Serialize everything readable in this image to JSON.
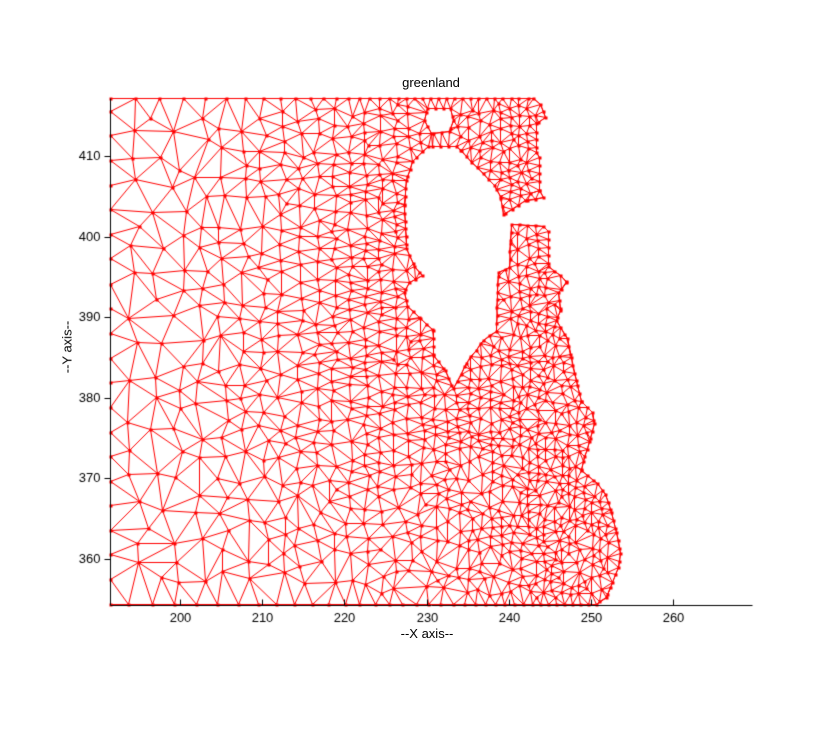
{
  "chart_data": {
    "type": "mesh",
    "title": "greenland",
    "xlabel": "--X axis--",
    "ylabel": "--Y axis--",
    "xlim": [
      191.48,
      269.59
    ],
    "ylim": [
      354.23,
      417.58
    ],
    "xticks": [
      200,
      210,
      220,
      230,
      240,
      250,
      260
    ],
    "yticks": [
      360,
      370,
      380,
      390,
      400,
      410
    ],
    "grid": false,
    "box": false,
    "mesh_color": "#ff0000",
    "axis_color": "#000000",
    "background": "#ffffff",
    "legend": null,
    "description": "Unstructured triangular finite-element mesh of a Greenland coastal fjord region; mesh is graded: coarse elements at the west (left) edge, fine elements along the jagged east coastline and around an unmeshed island hole in the middle.",
    "element_size_data_units": {
      "min": 1.03,
      "max": 3.16
    },
    "grading": {
      "coast_x": 244.4,
      "rate": 0.042,
      "refine_x": 233.5,
      "refine_y1": 385.9,
      "refine_y2": 407.0,
      "island_radius": 11.7,
      "island_rate": 0.08
    },
    "outer_boundary": [
      [
        191.48,
        417.2
      ],
      [
        242.94,
        417.2
      ],
      [
        243.8,
        416.46
      ],
      [
        244.4,
        414.84
      ],
      [
        243.31,
        414.1
      ],
      [
        243.31,
        410.5
      ],
      [
        243.67,
        409.88
      ],
      [
        243.67,
        405.78
      ],
      [
        244.16,
        404.91
      ],
      [
        241.97,
        404.53
      ],
      [
        239.29,
        402.8
      ],
      [
        238.93,
        405.03
      ],
      [
        238.2,
        406.4
      ],
      [
        234.06,
        410.75
      ],
      [
        233.58,
        411.24
      ],
      [
        230.17,
        411.24
      ],
      [
        228.22,
        409.38
      ],
      [
        227.49,
        407.02
      ],
      [
        227.25,
        403.91
      ],
      [
        227.37,
        401.06
      ],
      [
        227.49,
        398.57
      ],
      [
        228.47,
        396.34
      ],
      [
        229.44,
        395.22
      ],
      [
        227.86,
        394.35
      ],
      [
        227.25,
        393.11
      ],
      [
        227.62,
        391.37
      ],
      [
        229.2,
        389.88
      ],
      [
        230.78,
        388.39
      ],
      [
        230.78,
        385.28
      ],
      [
        232.24,
        383.42
      ],
      [
        233.21,
        381.18
      ],
      [
        234.79,
        384.29
      ],
      [
        236.86,
        387.14
      ],
      [
        238.44,
        388.26
      ],
      [
        238.56,
        393.11
      ],
      [
        238.69,
        395.59
      ],
      [
        240.02,
        396.21
      ],
      [
        240.15,
        399.57
      ],
      [
        240.27,
        401.55
      ],
      [
        244.16,
        401.3
      ],
      [
        244.77,
        400.68
      ],
      [
        244.77,
        396.34
      ],
      [
        246.23,
        395.22
      ],
      [
        246.96,
        394.35
      ],
      [
        245.99,
        393.11
      ],
      [
        246.23,
        390.87
      ],
      [
        245.74,
        389.63
      ],
      [
        247.08,
        387.39
      ],
      [
        247.57,
        385.03
      ],
      [
        248.3,
        381.55
      ],
      [
        248.78,
        379.57
      ],
      [
        250.12,
        378.2
      ],
      [
        250.36,
        376.83
      ],
      [
        249.76,
        374.6
      ],
      [
        249.03,
        372.11
      ],
      [
        248.78,
        371.0
      ],
      [
        250.73,
        369.38
      ],
      [
        251.7,
        368.01
      ],
      [
        252.43,
        365.78
      ],
      [
        253.04,
        363.29
      ],
      [
        253.53,
        360.68
      ],
      [
        253.28,
        358.94
      ],
      [
        252.31,
        356.46
      ],
      [
        251.82,
        355.22
      ],
      [
        250.61,
        354.35
      ],
      [
        191.48,
        354.35
      ]
    ],
    "holes": [
      [
        [
          230.05,
          415.96
        ],
        [
          232.85,
          415.96
        ],
        [
          233.21,
          414.47
        ],
        [
          232.73,
          413.11
        ],
        [
          230.54,
          412.86
        ],
        [
          229.68,
          414.47
        ]
      ]
    ]
  }
}
